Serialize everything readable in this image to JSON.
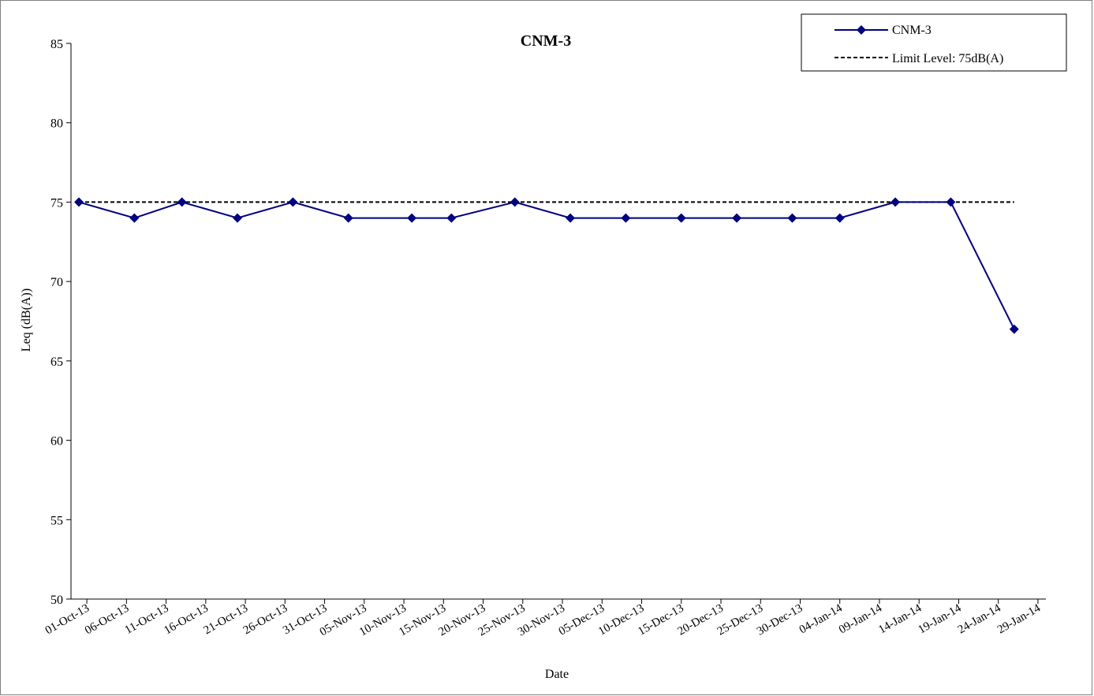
{
  "chart_data": {
    "type": "line",
    "title": "CNM-3",
    "xlabel": "Date",
    "ylabel": "Leq (dB(A))",
    "ylim": [
      50,
      85
    ],
    "yticks": [
      50,
      55,
      60,
      65,
      70,
      75,
      80,
      85
    ],
    "xlim": [
      "2013-09-29",
      "2014-01-30"
    ],
    "xtick_dates": [
      "2013-10-01",
      "2013-10-06",
      "2013-10-11",
      "2013-10-16",
      "2013-10-21",
      "2013-10-26",
      "2013-10-31",
      "2013-11-05",
      "2013-11-10",
      "2013-11-15",
      "2013-11-20",
      "2013-11-25",
      "2013-11-30",
      "2013-12-05",
      "2013-12-10",
      "2013-12-15",
      "2013-12-20",
      "2013-12-25",
      "2013-12-30",
      "2014-01-04",
      "2014-01-09",
      "2014-01-14",
      "2014-01-19",
      "2014-01-24",
      "2014-01-29"
    ],
    "xtick_labels": [
      "01-Oct-13",
      "06-Oct-13",
      "11-Oct-13",
      "16-Oct-13",
      "21-Oct-13",
      "26-Oct-13",
      "31-Oct-13",
      "05-Nov-13",
      "10-Nov-13",
      "15-Nov-13",
      "20-Nov-13",
      "25-Nov-13",
      "30-Nov-13",
      "05-Dec-13",
      "10-Dec-13",
      "15-Dec-13",
      "20-Dec-13",
      "25-Dec-13",
      "30-Dec-13",
      "04-Jan-14",
      "09-Jan-14",
      "14-Jan-14",
      "19-Jan-14",
      "24-Jan-14",
      "29-Jan-14"
    ],
    "series": [
      {
        "name": "CNM-3",
        "color": "#000080",
        "marker": "diamond",
        "x": [
          "2013-09-30",
          "2013-10-07",
          "2013-10-13",
          "2013-10-20",
          "2013-10-27",
          "2013-11-03",
          "2013-11-11",
          "2013-11-16",
          "2013-11-24",
          "2013-12-01",
          "2013-12-08",
          "2013-12-15",
          "2013-12-22",
          "2013-12-29",
          "2014-01-04",
          "2014-01-11",
          "2014-01-18",
          "2014-01-26"
        ],
        "values": [
          75,
          74,
          75,
          74,
          75,
          74,
          74,
          74,
          75,
          74,
          74,
          74,
          74,
          74,
          74,
          75,
          75,
          67
        ]
      },
      {
        "name": "Limit Level: 75dB(A)",
        "color": "#000000",
        "style": "dashed",
        "x": [
          "2013-09-30",
          "2014-01-26"
        ],
        "values": [
          75,
          75
        ]
      }
    ],
    "legend": "top-right",
    "grid": false
  }
}
